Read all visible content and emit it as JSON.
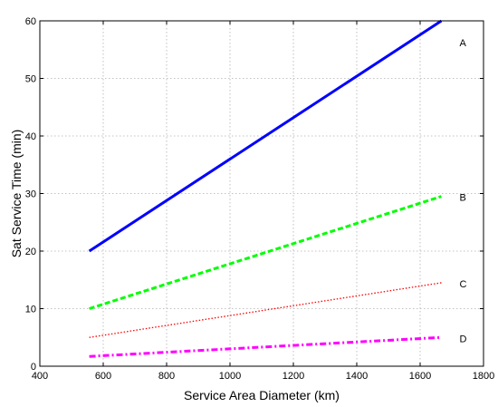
{
  "chart_data": {
    "type": "line",
    "title": "",
    "xlabel": "Service Area Diameter (km)",
    "ylabel": "Sat Service Time (min)",
    "xlim": [
      400,
      1800
    ],
    "ylim": [
      0,
      60
    ],
    "xticks": [
      400,
      600,
      800,
      1000,
      1200,
      1400,
      1600,
      1800
    ],
    "yticks": [
      0,
      10,
      20,
      30,
      40,
      50,
      60
    ],
    "grid": true,
    "legend": "none",
    "series": [
      {
        "label": "A",
        "x": [
          556,
          1667
        ],
        "values": [
          20,
          60
        ],
        "color": "#0000ff",
        "style": "solid"
      },
      {
        "label": "B",
        "x": [
          556,
          1667
        ],
        "values": [
          10,
          29.5
        ],
        "color": "#00ff00",
        "style": "dashed"
      },
      {
        "label": "C",
        "x": [
          556,
          1667
        ],
        "values": [
          5,
          14.5
        ],
        "color": "#ff0000",
        "style": "dotted"
      },
      {
        "label": "D",
        "x": [
          556,
          1667
        ],
        "values": [
          1.7,
          5
        ],
        "color": "#ff00ff",
        "style": "dashdot"
      }
    ]
  }
}
